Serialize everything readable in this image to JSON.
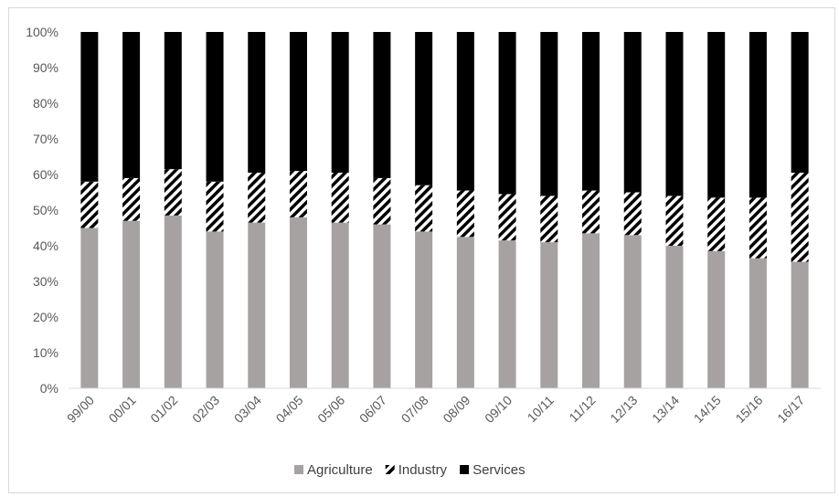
{
  "chart_data": {
    "type": "bar",
    "stacked": "percent",
    "categories": [
      "99/00",
      "00/01",
      "01/02",
      "02/03",
      "03/04",
      "04/05",
      "05/06",
      "06/07",
      "07/08",
      "08/09",
      "09/10",
      "10/11",
      "11/12",
      "12/13",
      "13/14",
      "14/15",
      "15/16",
      "16/17"
    ],
    "series": [
      {
        "name": "Agriculture",
        "color": "#a6a2a2",
        "pattern": "solid",
        "values": [
          45,
          47,
          48.5,
          44,
          46.5,
          48,
          46.5,
          46,
          44,
          42.5,
          41.5,
          41,
          43.5,
          43,
          40,
          38.5,
          36.5,
          35.5
        ]
      },
      {
        "name": "Industry",
        "color": "#000000",
        "pattern": "diagonal-stripes",
        "values": [
          13,
          12,
          13,
          14,
          14,
          13,
          14,
          13,
          13,
          13,
          13,
          13,
          12,
          12,
          14,
          15,
          17,
          25
        ]
      },
      {
        "name": "Services",
        "color": "#000000",
        "pattern": "solid",
        "values": [
          42,
          41,
          38.5,
          42,
          39.5,
          39,
          39.5,
          41,
          43,
          44.5,
          45.5,
          46,
          44.5,
          45,
          46,
          46.5,
          46.5,
          39.5
        ]
      }
    ],
    "yticks": [
      "0%",
      "10%",
      "20%",
      "30%",
      "40%",
      "50%",
      "60%",
      "70%",
      "80%",
      "90%",
      "100%"
    ],
    "ylim": [
      0,
      100
    ],
    "legend_position": "bottom",
    "grid": false
  }
}
